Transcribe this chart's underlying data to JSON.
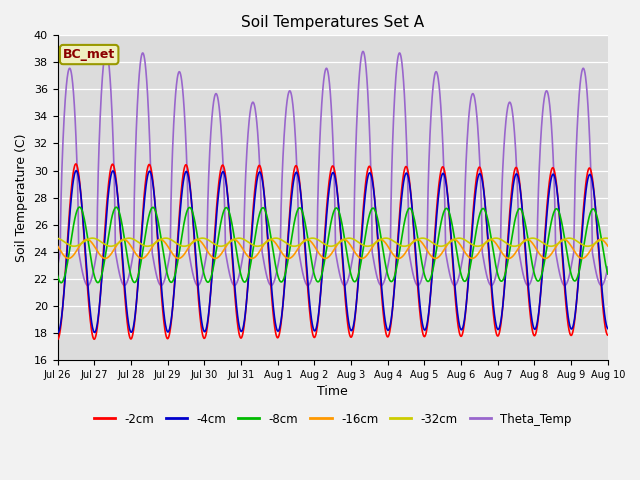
{
  "title": "Soil Temperatures Set A",
  "xlabel": "Time",
  "ylabel": "Soil Temperature (C)",
  "ylim": [
    16,
    40
  ],
  "xlim": [
    0,
    15
  ],
  "bg_color": "#dcdcdc",
  "fig_color": "#f2f2f2",
  "annotation": "BC_met",
  "legend": [
    "-2cm",
    "-4cm",
    "-8cm",
    "-16cm",
    "-32cm",
    "Theta_Temp"
  ],
  "colors": [
    "#ff0000",
    "#0000cc",
    "#00bb00",
    "#ff9900",
    "#cccc00",
    "#9966cc"
  ],
  "linewidths": [
    1.2,
    1.2,
    1.2,
    1.2,
    1.2,
    1.2
  ],
  "xtick_labels": [
    "Jul 26",
    "Jul 27",
    "Jul 28",
    "Jul 29",
    "Jul 30",
    "Jul 31",
    "Aug 1",
    "Aug 2",
    "Aug 3",
    "Aug 4",
    "Aug 5",
    "Aug 6",
    "Aug 7",
    "Aug 8",
    "Aug 9",
    "Aug 10"
  ],
  "ytick_vals": [
    16,
    18,
    20,
    22,
    24,
    26,
    28,
    30,
    32,
    34,
    36,
    38,
    40
  ]
}
